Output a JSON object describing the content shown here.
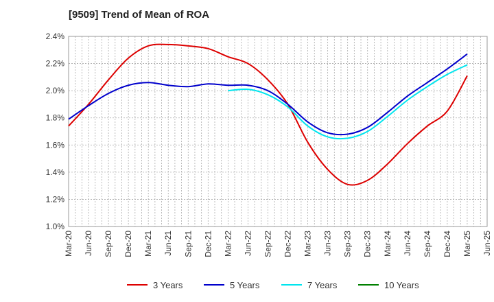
{
  "title": "[9509]  Trend of Mean of ROA",
  "chart_data": {
    "type": "line",
    "title": "[9509]  Trend of Mean of ROA",
    "xlabel": "",
    "ylabel": "",
    "ylim": [
      1.0,
      2.4
    ],
    "y_ticks": [
      1.0,
      1.2,
      1.4,
      1.6,
      1.8,
      2.0,
      2.2,
      2.4
    ],
    "y_tick_labels": [
      "1.0%",
      "1.2%",
      "1.4%",
      "1.6%",
      "1.8%",
      "2.0%",
      "2.2%",
      "2.4%"
    ],
    "x_tick_labels": [
      "Mar-20",
      "Jun-20",
      "Sep-20",
      "Dec-20",
      "Mar-21",
      "Jun-21",
      "Sep-21",
      "Dec-21",
      "Mar-22",
      "Jun-22",
      "Sep-22",
      "Dec-22",
      "Mar-23",
      "Jun-23",
      "Sep-23",
      "Dec-23",
      "Mar-24",
      "Jun-24",
      "Sep-24",
      "Dec-24",
      "Mar-25",
      "Jun-25"
    ],
    "grid": true,
    "legend_position": "bottom",
    "series": [
      {
        "name": "3 Years",
        "color": "#dd0000",
        "points": [
          [
            "Mar-20",
            1.74
          ],
          [
            "Jun-20",
            1.9
          ],
          [
            "Sep-20",
            2.08
          ],
          [
            "Dec-20",
            2.24
          ],
          [
            "Mar-21",
            2.33
          ],
          [
            "Jun-21",
            2.34
          ],
          [
            "Sep-21",
            2.33
          ],
          [
            "Dec-21",
            2.31
          ],
          [
            "Mar-22",
            2.25
          ],
          [
            "Jun-22",
            2.2
          ],
          [
            "Sep-22",
            2.08
          ],
          [
            "Dec-22",
            1.9
          ],
          [
            "Mar-23",
            1.62
          ],
          [
            "Jun-23",
            1.42
          ],
          [
            "Sep-23",
            1.31
          ],
          [
            "Dec-23",
            1.34
          ],
          [
            "Mar-24",
            1.46
          ],
          [
            "Jun-24",
            1.61
          ],
          [
            "Sep-24",
            1.74
          ],
          [
            "Dec-24",
            1.85
          ],
          [
            "Mar-25",
            2.11
          ]
        ]
      },
      {
        "name": "5 Years",
        "color": "#0000cc",
        "points": [
          [
            "Mar-20",
            1.79
          ],
          [
            "Jun-20",
            1.89
          ],
          [
            "Sep-20",
            1.98
          ],
          [
            "Dec-20",
            2.04
          ],
          [
            "Mar-21",
            2.06
          ],
          [
            "Jun-21",
            2.04
          ],
          [
            "Sep-21",
            2.03
          ],
          [
            "Dec-21",
            2.05
          ],
          [
            "Mar-22",
            2.04
          ],
          [
            "Jun-22",
            2.04
          ],
          [
            "Sep-22",
            2.0
          ],
          [
            "Dec-22",
            1.9
          ],
          [
            "Mar-23",
            1.77
          ],
          [
            "Jun-23",
            1.69
          ],
          [
            "Sep-23",
            1.68
          ],
          [
            "Dec-23",
            1.73
          ],
          [
            "Mar-24",
            1.84
          ],
          [
            "Jun-24",
            1.96
          ],
          [
            "Sep-24",
            2.06
          ],
          [
            "Dec-24",
            2.16
          ],
          [
            "Mar-25",
            2.27
          ]
        ]
      },
      {
        "name": "7 Years",
        "color": "#00e5ee",
        "points": [
          [
            "Mar-22",
            2.0
          ],
          [
            "Jun-22",
            2.01
          ],
          [
            "Sep-22",
            1.97
          ],
          [
            "Dec-22",
            1.88
          ],
          [
            "Mar-23",
            1.74
          ],
          [
            "Jun-23",
            1.66
          ],
          [
            "Sep-23",
            1.65
          ],
          [
            "Dec-23",
            1.7
          ],
          [
            "Mar-24",
            1.81
          ],
          [
            "Jun-24",
            1.93
          ],
          [
            "Sep-24",
            2.03
          ],
          [
            "Dec-24",
            2.12
          ],
          [
            "Mar-25",
            2.19
          ]
        ]
      },
      {
        "name": "10 Years",
        "color": "#008000",
        "points": []
      }
    ]
  }
}
